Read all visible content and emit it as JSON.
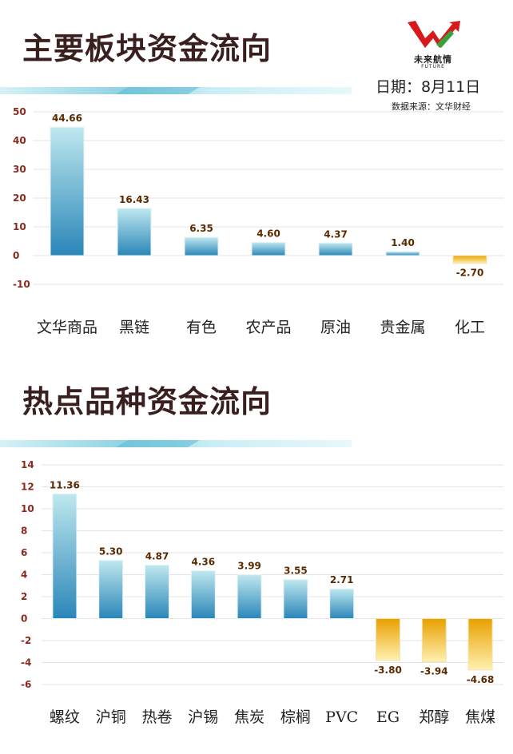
{
  "header": {
    "logo_text": "未来航情",
    "logo_sub": "FUTURE",
    "date": "日期：8月11日",
    "source": "数据来源：文华财经"
  },
  "colors": {
    "positive_top": "#bfe8ef",
    "positive_bottom": "#2a86b8",
    "negative_top": "#e8a000",
    "negative_bottom": "#fff1b0",
    "title": "#3a1f1f",
    "tick": "#8a2a1e"
  },
  "chart_data": [
    {
      "type": "bar",
      "title": "主要板块资金流向",
      "categories": [
        "文华商品",
        "黑链",
        "有色",
        "农产品",
        "原油",
        "贵金属",
        "化工"
      ],
      "values": [
        44.66,
        16.43,
        6.35,
        4.6,
        4.37,
        1.4,
        -2.7
      ],
      "value_labels": [
        "44.66",
        "16.43",
        "6.35",
        "4.60",
        "4.37",
        "1.40",
        "-2.70"
      ],
      "yticks": [
        "50",
        "40",
        "30",
        "20",
        "10",
        "0",
        "-10"
      ],
      "ylim": [
        -10,
        50
      ],
      "xlabel": "",
      "ylabel": "",
      "grid": true
    },
    {
      "type": "bar",
      "title": "热点品种资金流向",
      "categories": [
        "螺纹",
        "沪铜",
        "热卷",
        "沪锡",
        "焦炭",
        "棕榈",
        "PVC",
        "EG",
        "郑醇",
        "焦煤"
      ],
      "values": [
        11.36,
        5.3,
        4.87,
        4.36,
        3.99,
        3.55,
        2.71,
        -3.8,
        -3.94,
        -4.68
      ],
      "value_labels": [
        "11.36",
        "5.30",
        "4.87",
        "4.36",
        "3.99",
        "3.55",
        "2.71",
        "-3.80",
        "-3.94",
        "-4.68"
      ],
      "yticks": [
        "14",
        "12",
        "10",
        "8",
        "6",
        "4",
        "2",
        "0",
        "-2",
        "-4",
        "-6"
      ],
      "ylim": [
        -6,
        14
      ],
      "xlabel": "",
      "ylabel": "",
      "grid": true
    }
  ]
}
